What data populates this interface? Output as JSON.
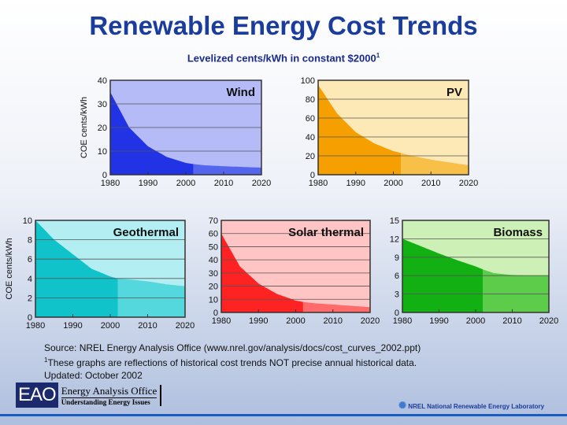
{
  "title": "Renewable Energy Cost Trends",
  "subtitle": "Levelized cents/kWh in constant $2000",
  "subtitle_sup": "1",
  "notes": {
    "source": "Source: NREL Energy Analysis Office (www.nrel.gov/analysis/docs/cost_curves_2002.ppt)",
    "footnote_sup": "1",
    "footnote": "These graphs are reflections of historical cost trends NOT precise annual historical data.",
    "updated": "Updated: October 2002"
  },
  "logos": {
    "eao_mark": "EAO",
    "eao_name": "Energy Analysis Office",
    "eao_tag": "Understanding Energy Issues",
    "nrel": "NREL National Renewable Energy Laboratory"
  },
  "chart_data": [
    {
      "type": "area",
      "title": "Wind",
      "ylabel": "COE cents/kWh",
      "xlim": [
        1980,
        2020
      ],
      "ylim": [
        0,
        40
      ],
      "yticks": [
        0,
        10,
        20,
        30,
        40
      ],
      "xticks": [
        1980,
        1990,
        2000,
        2010,
        2020
      ],
      "historical_until": 2002,
      "x": [
        1980,
        1985,
        1990,
        1995,
        2000,
        2002,
        2005,
        2010,
        2015,
        2020
      ],
      "y": [
        35,
        20,
        12,
        7.5,
        5,
        4.5,
        4,
        3.6,
        3.3,
        3
      ],
      "colors": {
        "bg": "#b5bbf6",
        "fill": "#2233e6",
        "projected": "#5566ee"
      }
    },
    {
      "type": "area",
      "title": "PV",
      "ylabel": "",
      "xlim": [
        1980,
        2020
      ],
      "ylim": [
        0,
        100
      ],
      "yticks": [
        0,
        20,
        40,
        60,
        80,
        100
      ],
      "xticks": [
        1980,
        1990,
        2000,
        2010,
        2020
      ],
      "historical_until": 2002,
      "x": [
        1980,
        1985,
        1990,
        1995,
        2000,
        2002,
        2005,
        2010,
        2015,
        2020
      ],
      "y": [
        95,
        65,
        45,
        33,
        25,
        23,
        20,
        16,
        13,
        10
      ],
      "colors": {
        "bg": "#fde9b6",
        "fill": "#f5a000",
        "projected": "#f8c048"
      }
    },
    {
      "type": "area",
      "title": "Geothermal",
      "ylabel": "COE cents/kWh",
      "xlim": [
        1980,
        2020
      ],
      "ylim": [
        0,
        10
      ],
      "yticks": [
        0,
        2,
        4,
        6,
        8,
        10
      ],
      "xticks": [
        1980,
        1990,
        2000,
        2010,
        2020
      ],
      "historical_until": 2002,
      "x": [
        1980,
        1985,
        1990,
        1995,
        2000,
        2002,
        2005,
        2010,
        2015,
        2020
      ],
      "y": [
        10,
        8,
        6.5,
        5,
        4.2,
        4,
        3.9,
        3.7,
        3.4,
        3.2
      ],
      "colors": {
        "bg": "#b2eef2",
        "fill": "#10c2ca",
        "projected": "#55d8dd"
      }
    },
    {
      "type": "area",
      "title": "Solar thermal",
      "ylabel": "",
      "xlim": [
        1980,
        2020
      ],
      "ylim": [
        0,
        70
      ],
      "yticks": [
        0,
        10,
        20,
        30,
        40,
        50,
        60,
        70
      ],
      "xticks": [
        1980,
        1990,
        2000,
        2010,
        2020
      ],
      "historical_until": 2002,
      "x": [
        1980,
        1985,
        1990,
        1995,
        2000,
        2002,
        2005,
        2010,
        2015,
        2020
      ],
      "y": [
        60,
        35,
        22,
        14,
        9,
        8,
        7,
        6,
        5,
        4
      ],
      "colors": {
        "bg": "#ffc4c4",
        "fill": "#ff2222",
        "projected": "#ff6a6a"
      }
    },
    {
      "type": "area",
      "title": "Biomass",
      "ylabel": "",
      "xlim": [
        1980,
        2020
      ],
      "ylim": [
        0,
        15
      ],
      "yticks": [
        0,
        3,
        6,
        9,
        12,
        15
      ],
      "xticks": [
        1980,
        1990,
        2000,
        2010,
        2020
      ],
      "historical_until": 2002,
      "x": [
        1980,
        1985,
        1990,
        1995,
        2000,
        2002,
        2005,
        2010,
        2015,
        2020
      ],
      "y": [
        12,
        10.8,
        9.6,
        8.5,
        7.5,
        7,
        6.4,
        6.1,
        6,
        6
      ],
      "colors": {
        "bg": "#ccf0b6",
        "fill": "#12b012",
        "projected": "#5ccc4a"
      }
    }
  ]
}
